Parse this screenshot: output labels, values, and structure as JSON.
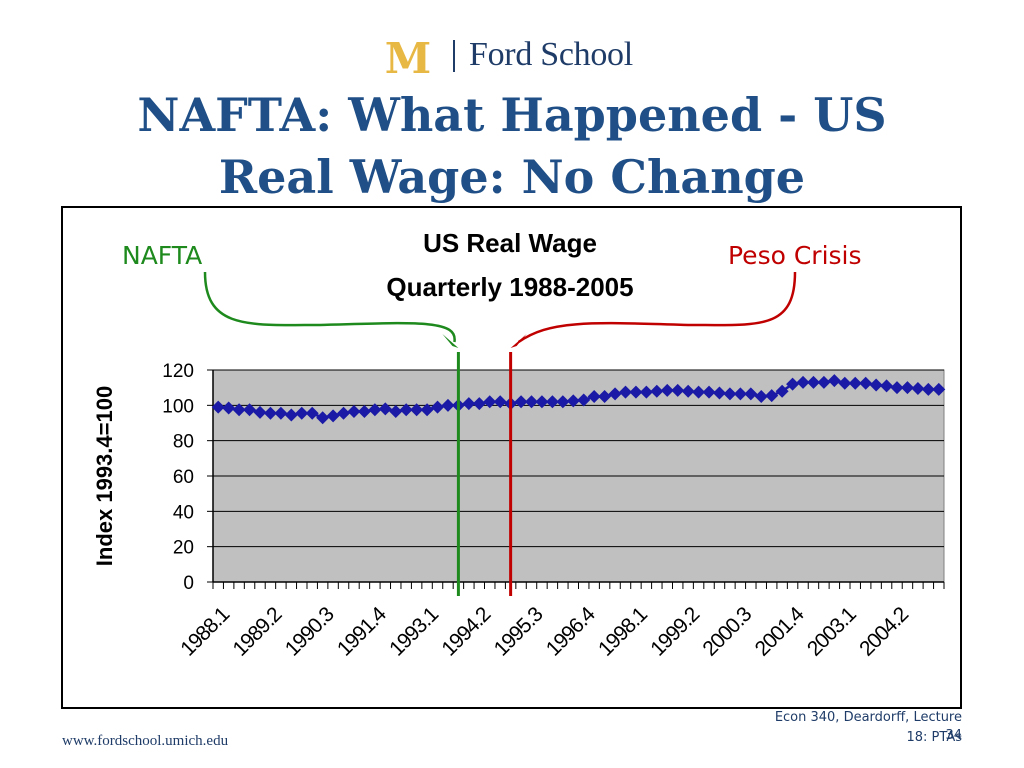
{
  "logo": {
    "letter": "M",
    "text": "Ford School"
  },
  "slide": {
    "title_line1": "NAFTA: What Happened - US",
    "title_line2": "Real Wage:  No Change"
  },
  "annotations": {
    "nafta": {
      "text": "NAFTA",
      "x": "1993.4",
      "color": "#1e8a1e"
    },
    "peso_crisis": {
      "text": "Peso Crisis",
      "x": "1995.1",
      "color": "#c00000"
    }
  },
  "footer": {
    "url": "www.fordschool.umich.edu",
    "note_line1": "Econ 340, Deardorff, Lecture",
    "note_line2": "18: PTAs",
    "page": "34"
  },
  "colors": {
    "title": "#1f4f86",
    "logo": "#1f3c68",
    "logo_m": "#e8b844",
    "plot_area": "#c0c0c0",
    "series": "#1a1aa6"
  },
  "chart_data": {
    "type": "line",
    "title_line1": "US Real Wage",
    "title_line2": "Quarterly 1988-2005",
    "xlabel": "",
    "ylabel": "Index 1993.4=100",
    "ylim": [
      0,
      120
    ],
    "yticks": [
      0,
      20,
      40,
      60,
      80,
      100,
      120
    ],
    "grid": true,
    "legend": "none",
    "x_tick_labels": [
      "1988.1",
      "1989.2",
      "1990.3",
      "1991.4",
      "1993.1",
      "1994.2",
      "1995.3",
      "1996.4",
      "1998.1",
      "1999.2",
      "2000.3",
      "2001.4",
      "2003.1",
      "2004.2"
    ],
    "x": [
      "1988.1",
      "1988.2",
      "1988.3",
      "1988.4",
      "1989.1",
      "1989.2",
      "1989.3",
      "1989.4",
      "1990.1",
      "1990.2",
      "1990.3",
      "1990.4",
      "1991.1",
      "1991.2",
      "1991.3",
      "1991.4",
      "1992.1",
      "1992.2",
      "1992.3",
      "1992.4",
      "1993.1",
      "1993.2",
      "1993.3",
      "1993.4",
      "1994.1",
      "1994.2",
      "1994.3",
      "1994.4",
      "1995.1",
      "1995.2",
      "1995.3",
      "1995.4",
      "1996.1",
      "1996.2",
      "1996.3",
      "1996.4",
      "1997.1",
      "1997.2",
      "1997.3",
      "1997.4",
      "1998.1",
      "1998.2",
      "1998.3",
      "1998.4",
      "1999.1",
      "1999.2",
      "1999.3",
      "1999.4",
      "2000.1",
      "2000.2",
      "2000.3",
      "2000.4",
      "2001.1",
      "2001.2",
      "2001.3",
      "2001.4",
      "2002.1",
      "2002.2",
      "2002.3",
      "2002.4",
      "2003.1",
      "2003.2",
      "2003.3",
      "2003.4",
      "2004.1",
      "2004.2",
      "2004.3",
      "2004.4",
      "2005.1",
      "2005.2"
    ],
    "series": [
      {
        "values": [
          99,
          98.5,
          97.5,
          97.5,
          96,
          95.5,
          95.5,
          94.5,
          95.5,
          95.5,
          93,
          94,
          95.5,
          96.5,
          96.5,
          97.5,
          98,
          96.5,
          97.5,
          97.5,
          97.5,
          99,
          100,
          100,
          101,
          101,
          102,
          102,
          101,
          102,
          102,
          102,
          102,
          102,
          102.5,
          103,
          105,
          105,
          106.5,
          107.5,
          107.5,
          107.5,
          108,
          108.5,
          108.5,
          108,
          107.5,
          107.5,
          107,
          106.5,
          106.5,
          106.5,
          105,
          105.5,
          108,
          112,
          113,
          113,
          113,
          114,
          112.5,
          112.5,
          112.5,
          111.5,
          111,
          110,
          110,
          109.5,
          109,
          109
        ]
      }
    ]
  }
}
